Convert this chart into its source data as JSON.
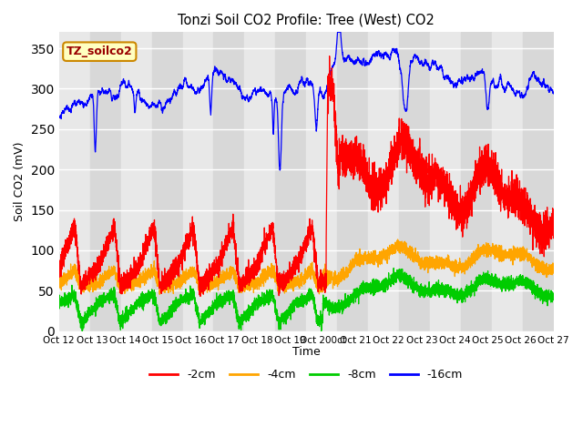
{
  "title": "Tonzi Soil CO2 Profile: Tree (West) CO2",
  "ylabel": "Soil CO2 (mV)",
  "xlabel": "Time",
  "xtick_labels": [
    "Oct 12",
    "Oct 13",
    "Oct 14",
    "Oct 15",
    "Oct 16",
    "Oct 17",
    "Oct 18",
    "Oct 19",
    "Oct 200ct",
    "Oct 21",
    "Oct 22",
    "Oct 23",
    "Oct 24",
    "Oct 25",
    "Oct 26",
    "Oct 27"
  ],
  "ylim": [
    0,
    370
  ],
  "yticks": [
    0,
    50,
    100,
    150,
    200,
    250,
    300,
    350
  ],
  "colors": {
    "neg2cm": "#ff0000",
    "neg4cm": "#ffa500",
    "neg8cm": "#00cc00",
    "neg16cm": "#0000ff"
  },
  "legend_label": "TZ_soilco2",
  "series_labels": [
    "-2cm",
    "-4cm",
    "-8cm",
    "-16cm"
  ],
  "n_points": 5000,
  "days": 15
}
